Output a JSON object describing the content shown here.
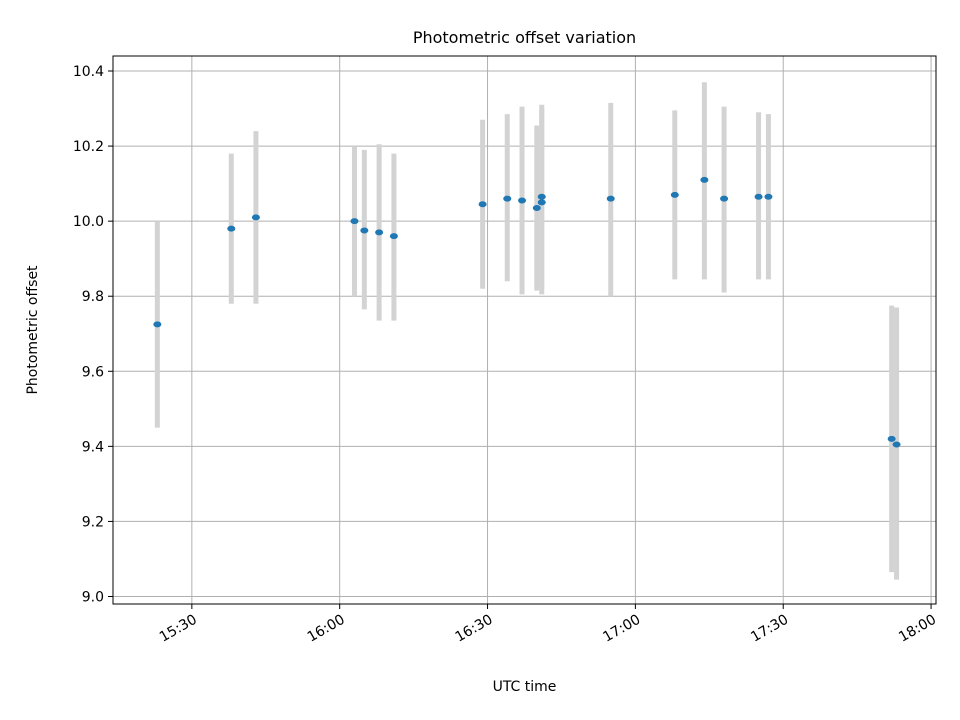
{
  "chart_data": {
    "type": "scatter",
    "title": "Photometric offset variation",
    "xlabel": "UTC time",
    "ylabel": "Photometric offset",
    "x_ticks": [
      "15:30",
      "16:00",
      "16:30",
      "17:00",
      "17:30",
      "18:00"
    ],
    "y_ticks": [
      "9.0",
      "9.2",
      "9.4",
      "9.6",
      "9.8",
      "10.0",
      "10.2",
      "10.4"
    ],
    "xlim": [
      "15:14",
      "18:01"
    ],
    "ylim": [
      8.98,
      10.44
    ],
    "grid": true,
    "point_color": "#1f77b4",
    "errorbar_color": "#d3d3d3",
    "series": [
      {
        "points": [
          {
            "x": "15:23",
            "y": 9.725,
            "ylow": 9.45,
            "yhigh": 10.0
          },
          {
            "x": "15:38",
            "y": 9.98,
            "ylow": 9.78,
            "yhigh": 10.18
          },
          {
            "x": "15:43",
            "y": 10.01,
            "ylow": 9.78,
            "yhigh": 10.24
          },
          {
            "x": "16:03",
            "y": 10.0,
            "ylow": 9.8,
            "yhigh": 10.2
          },
          {
            "x": "16:05",
            "y": 9.975,
            "ylow": 9.765,
            "yhigh": 10.19
          },
          {
            "x": "16:08",
            "y": 9.97,
            "ylow": 9.735,
            "yhigh": 10.205
          },
          {
            "x": "16:11",
            "y": 9.96,
            "ylow": 9.735,
            "yhigh": 10.18
          },
          {
            "x": "16:29",
            "y": 10.045,
            "ylow": 9.82,
            "yhigh": 10.27
          },
          {
            "x": "16:34",
            "y": 10.06,
            "ylow": 9.84,
            "yhigh": 10.285
          },
          {
            "x": "16:37",
            "y": 10.055,
            "ylow": 9.805,
            "yhigh": 10.305
          },
          {
            "x": "16:40",
            "y": 10.035,
            "ylow": 9.815,
            "yhigh": 10.255
          },
          {
            "x": "16:41",
            "y": 10.05,
            "ylow": 9.805,
            "yhigh": 10.3
          },
          {
            "x": "16:41",
            "y": 10.065,
            "ylow": 9.82,
            "yhigh": 10.31
          },
          {
            "x": "16:55",
            "y": 10.06,
            "ylow": 9.8,
            "yhigh": 10.315
          },
          {
            "x": "17:08",
            "y": 10.07,
            "ylow": 9.845,
            "yhigh": 10.295
          },
          {
            "x": "17:14",
            "y": 10.11,
            "ylow": 9.845,
            "yhigh": 10.37
          },
          {
            "x": "17:18",
            "y": 10.06,
            "ylow": 9.81,
            "yhigh": 10.305
          },
          {
            "x": "17:25",
            "y": 10.065,
            "ylow": 9.845,
            "yhigh": 10.29
          },
          {
            "x": "17:27",
            "y": 10.065,
            "ylow": 9.845,
            "yhigh": 10.285
          },
          {
            "x": "17:52",
            "y": 9.42,
            "ylow": 9.065,
            "yhigh": 9.775
          },
          {
            "x": "17:53",
            "y": 9.405,
            "ylow": 9.045,
            "yhigh": 9.77
          }
        ]
      }
    ]
  }
}
